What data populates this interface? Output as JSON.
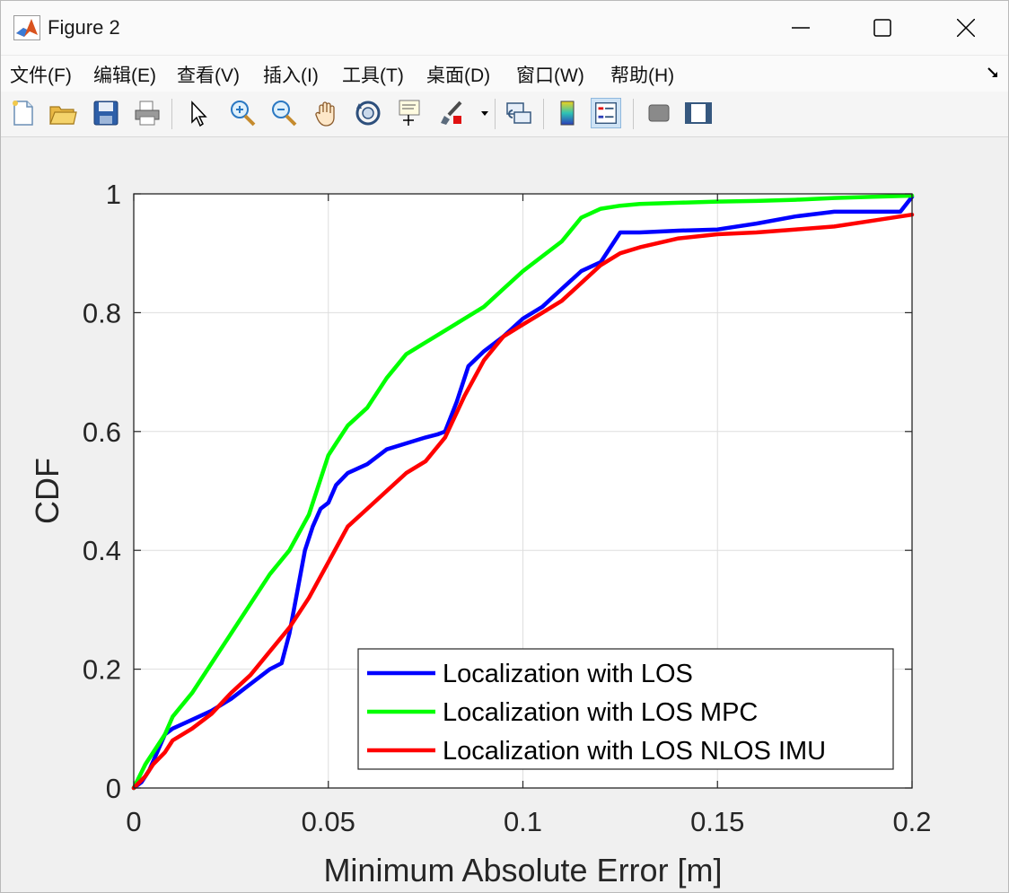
{
  "window": {
    "title": "Figure 2",
    "controls": {
      "minimize_icon": "minimize-icon",
      "maximize_icon": "maximize-icon",
      "close_icon": "close-icon"
    }
  },
  "menu": {
    "items": [
      "文件(F)",
      "编辑(E)",
      "查看(V)",
      "插入(I)",
      "工具(T)",
      "桌面(D)",
      "窗口(W)",
      "帮助(H)"
    ],
    "dock_icon": "dock-arrow-icon"
  },
  "toolbar": {
    "tools": [
      "new-figure-icon",
      "open-file-icon",
      "save-icon",
      "print-icon",
      "select-arrow-icon",
      "zoom-in-icon",
      "zoom-out-icon",
      "pan-hand-icon",
      "rotate-3d-icon",
      "data-cursor-icon",
      "brush-icon",
      "link-plot-icon",
      "colorbar-icon",
      "legend-icon",
      "hide-plot-tools-icon",
      "show-plot-tools-icon"
    ],
    "active_tool": "legend-icon"
  },
  "chart_data": {
    "type": "line",
    "title": "",
    "xlabel": "Minimum Absolute Error [m]",
    "ylabel": "CDF",
    "xlim": [
      0,
      0.2
    ],
    "ylim": [
      0,
      1
    ],
    "xticks": [
      "0",
      "0.05",
      "0.1",
      "0.15",
      "0.2"
    ],
    "yticks": [
      "0",
      "0.2",
      "0.4",
      "0.6",
      "0.8",
      "1"
    ],
    "grid": true,
    "legend_position": "bottom-right",
    "series": [
      {
        "name": "Localization with LOS",
        "color": "#0000ff",
        "x": [
          0,
          0.002,
          0.004,
          0.006,
          0.008,
          0.01,
          0.015,
          0.02,
          0.025,
          0.03,
          0.035,
          0.038,
          0.04,
          0.042,
          0.044,
          0.046,
          0.048,
          0.05,
          0.052,
          0.055,
          0.06,
          0.065,
          0.07,
          0.075,
          0.078,
          0.08,
          0.083,
          0.086,
          0.09,
          0.095,
          0.1,
          0.105,
          0.11,
          0.115,
          0.12,
          0.125,
          0.13,
          0.14,
          0.15,
          0.16,
          0.17,
          0.18,
          0.19,
          0.197,
          0.2
        ],
        "y": [
          0,
          0.01,
          0.03,
          0.06,
          0.09,
          0.1,
          0.115,
          0.13,
          0.15,
          0.175,
          0.2,
          0.21,
          0.26,
          0.33,
          0.4,
          0.44,
          0.47,
          0.48,
          0.51,
          0.53,
          0.545,
          0.57,
          0.58,
          0.59,
          0.595,
          0.6,
          0.65,
          0.71,
          0.735,
          0.76,
          0.79,
          0.81,
          0.84,
          0.87,
          0.885,
          0.935,
          0.935,
          0.938,
          0.94,
          0.95,
          0.962,
          0.97,
          0.97,
          0.97,
          0.995
        ]
      },
      {
        "name": "Localization with LOS MPC",
        "color": "#00ff00",
        "x": [
          0,
          0.003,
          0.005,
          0.008,
          0.01,
          0.015,
          0.02,
          0.025,
          0.03,
          0.035,
          0.04,
          0.045,
          0.048,
          0.05,
          0.052,
          0.055,
          0.06,
          0.065,
          0.07,
          0.075,
          0.08,
          0.085,
          0.09,
          0.095,
          0.1,
          0.105,
          0.11,
          0.115,
          0.12,
          0.125,
          0.13,
          0.14,
          0.15,
          0.16,
          0.17,
          0.18,
          0.19,
          0.2
        ],
        "y": [
          0,
          0.04,
          0.06,
          0.09,
          0.12,
          0.16,
          0.21,
          0.26,
          0.31,
          0.36,
          0.4,
          0.46,
          0.52,
          0.56,
          0.58,
          0.61,
          0.64,
          0.69,
          0.73,
          0.75,
          0.77,
          0.79,
          0.81,
          0.84,
          0.87,
          0.895,
          0.92,
          0.96,
          0.975,
          0.98,
          0.983,
          0.985,
          0.987,
          0.988,
          0.99,
          0.993,
          0.995,
          0.997
        ]
      },
      {
        "name": "Localization with LOS NLOS IMU",
        "color": "#ff0000",
        "x": [
          0,
          0.003,
          0.005,
          0.008,
          0.01,
          0.015,
          0.02,
          0.025,
          0.03,
          0.035,
          0.04,
          0.045,
          0.05,
          0.055,
          0.06,
          0.065,
          0.07,
          0.075,
          0.08,
          0.085,
          0.09,
          0.095,
          0.1,
          0.105,
          0.11,
          0.115,
          0.12,
          0.125,
          0.13,
          0.14,
          0.15,
          0.16,
          0.17,
          0.18,
          0.19,
          0.2
        ],
        "y": [
          0,
          0.02,
          0.04,
          0.06,
          0.08,
          0.1,
          0.125,
          0.16,
          0.19,
          0.23,
          0.27,
          0.32,
          0.38,
          0.44,
          0.47,
          0.5,
          0.53,
          0.55,
          0.59,
          0.66,
          0.72,
          0.76,
          0.78,
          0.8,
          0.82,
          0.85,
          0.88,
          0.9,
          0.91,
          0.925,
          0.932,
          0.935,
          0.94,
          0.945,
          0.955,
          0.965
        ]
      }
    ]
  }
}
